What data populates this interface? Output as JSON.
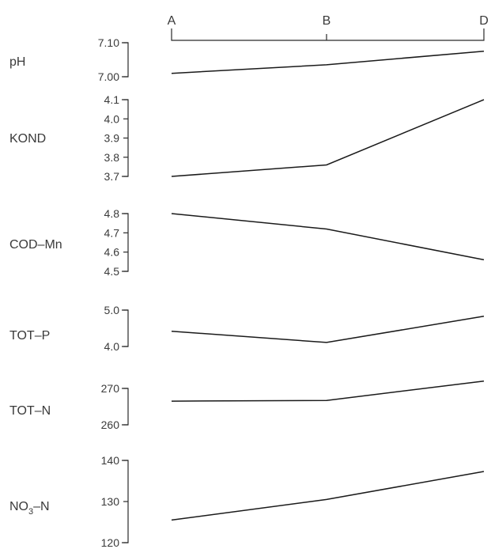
{
  "chart_data": {
    "type": "line",
    "x_categories": [
      "A",
      "B",
      "D"
    ],
    "panels": [
      {
        "label": "pH",
        "ylim": [
          7.0,
          7.1
        ],
        "ticks": [
          "7.10",
          "7.00"
        ],
        "tick_values": [
          7.1,
          7.0
        ],
        "values": [
          7.01,
          7.035,
          7.075
        ]
      },
      {
        "label": "KOND",
        "ylim": [
          3.7,
          4.1
        ],
        "ticks": [
          "4.1",
          "4.0",
          "3.9",
          "3.8",
          "3.7"
        ],
        "tick_values": [
          4.1,
          4.0,
          3.9,
          3.8,
          3.7
        ],
        "values": [
          3.7,
          3.76,
          4.1
        ]
      },
      {
        "label": "COD–Mn",
        "ylim": [
          4.5,
          4.8
        ],
        "ticks": [
          "4.8",
          "4.7",
          "4.6",
          "4.5"
        ],
        "tick_values": [
          4.8,
          4.7,
          4.6,
          4.5
        ],
        "values": [
          4.8,
          4.72,
          4.56
        ]
      },
      {
        "label": "TOT–P",
        "ylim": [
          4.0,
          5.0
        ],
        "ticks": [
          "5.0",
          "4.0"
        ],
        "tick_values": [
          5.0,
          4.0
        ],
        "values": [
          4.42,
          4.11,
          4.83
        ]
      },
      {
        "label": "TOT–N",
        "ylim": [
          260,
          270
        ],
        "ticks": [
          "270",
          "260"
        ],
        "tick_values": [
          270,
          260
        ],
        "values": [
          266.5,
          266.7,
          272.0
        ]
      },
      {
        "label_main": "NO",
        "label_sub": "3",
        "label_tail": "–N",
        "ylim": [
          120,
          140
        ],
        "ticks": [
          "140",
          "130",
          "120"
        ],
        "tick_values": [
          140,
          130,
          120
        ],
        "values": [
          125.5,
          130.5,
          137.3
        ]
      }
    ]
  }
}
